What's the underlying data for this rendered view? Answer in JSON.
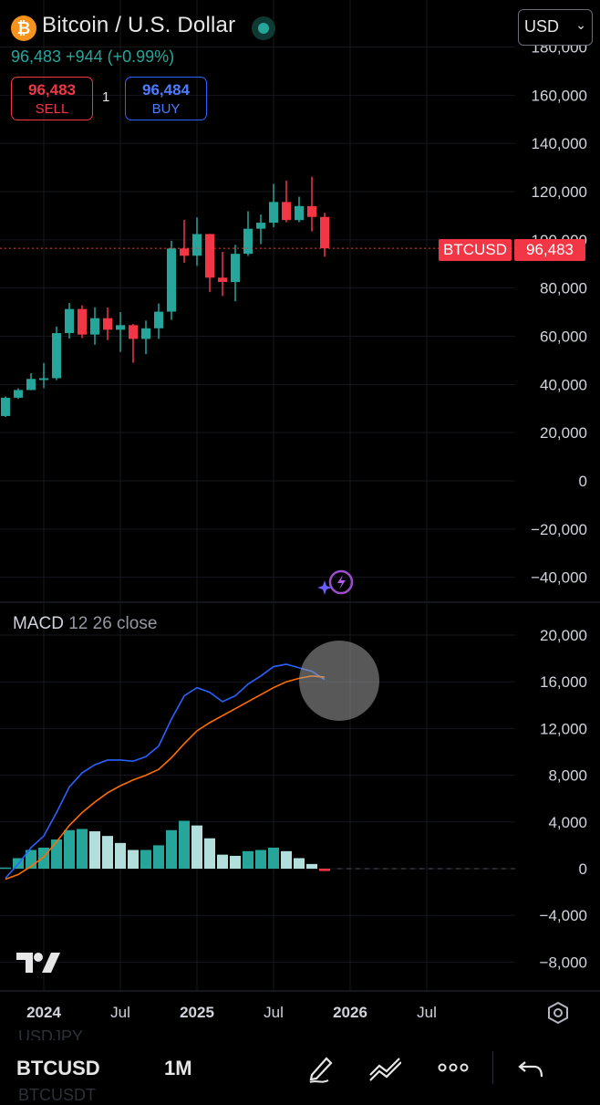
{
  "header": {
    "logo_glyph": "₿",
    "title": "Bitcoin / U.S. Dollar",
    "price": "96,483",
    "change": "+944",
    "change_pct": "(+0.99%)",
    "sell_price": "96,483",
    "sell_label": "SELL",
    "quantity": "1",
    "buy_price": "96,484",
    "buy_label": "BUY",
    "currency": "USD"
  },
  "price_tags": {
    "symbol": "BTCUSD",
    "price": "96,483"
  },
  "colors": {
    "up": "#26a69a",
    "down": "#f23645",
    "macd_line": "#2962ff",
    "signal_line": "#ff6d00",
    "hist_up_strong": "#26a69a",
    "hist_up_weak": "#b2dfdb"
  },
  "price_axis": [
    "180,000",
    "160,000",
    "140,000",
    "120,000",
    "100,000",
    "80,000",
    "60,000",
    "40,000",
    "20,000",
    "0",
    "−20,000",
    "−40,000"
  ],
  "macd": {
    "name": "MACD",
    "params": "12 26 close",
    "axis": [
      "20,000",
      "16,000",
      "12,000",
      "8,000",
      "4,000",
      "0",
      "−4,000",
      "−8,000"
    ]
  },
  "time_axis": [
    "2024",
    "Jul",
    "2025",
    "Jul",
    "2026",
    "Jul"
  ],
  "toolbar": {
    "symbol": "BTCUSD",
    "interval": "1M",
    "ghost_above": "USDJPY",
    "ghost_below": "BTCUSDT"
  },
  "chart_data": [
    {
      "type": "candlestick",
      "title": "Bitcoin / U.S. Dollar",
      "interval": "1M",
      "ylim": [
        -40000,
        180000
      ],
      "candles": [
        {
          "date": "2023-10",
          "open": 26900,
          "high": 35000,
          "low": 26500,
          "close": 34500
        },
        {
          "date": "2023-11",
          "open": 34500,
          "high": 38400,
          "low": 34000,
          "close": 37700
        },
        {
          "date": "2023-12",
          "open": 37700,
          "high": 44700,
          "low": 37600,
          "close": 42300
        },
        {
          "date": "2024-01",
          "open": 42300,
          "high": 48900,
          "low": 38500,
          "close": 42600
        },
        {
          "date": "2024-02",
          "open": 42600,
          "high": 64000,
          "low": 41800,
          "close": 61300
        },
        {
          "date": "2024-03",
          "open": 61300,
          "high": 73800,
          "low": 59000,
          "close": 71300
        },
        {
          "date": "2024-04",
          "open": 71300,
          "high": 72800,
          "low": 59200,
          "close": 60700
        },
        {
          "date": "2024-05",
          "open": 60700,
          "high": 72000,
          "low": 56500,
          "close": 67500
        },
        {
          "date": "2024-06",
          "open": 67500,
          "high": 71900,
          "low": 58400,
          "close": 62700
        },
        {
          "date": "2024-07",
          "open": 62700,
          "high": 70000,
          "low": 53500,
          "close": 64600
        },
        {
          "date": "2024-08",
          "open": 64600,
          "high": 65100,
          "low": 49000,
          "close": 58900
        },
        {
          "date": "2024-09",
          "open": 58900,
          "high": 66500,
          "low": 52600,
          "close": 63300
        },
        {
          "date": "2024-10",
          "open": 63300,
          "high": 73600,
          "low": 58900,
          "close": 70200
        },
        {
          "date": "2024-11",
          "open": 70200,
          "high": 99600,
          "low": 66800,
          "close": 96400
        },
        {
          "date": "2024-12",
          "open": 96400,
          "high": 108300,
          "low": 90500,
          "close": 93400
        },
        {
          "date": "2025-01",
          "open": 93400,
          "high": 109300,
          "low": 89200,
          "close": 102400
        },
        {
          "date": "2025-02",
          "open": 102400,
          "high": 102500,
          "low": 78300,
          "close": 84300
        },
        {
          "date": "2025-03",
          "open": 84300,
          "high": 95000,
          "low": 76700,
          "close": 82500
        },
        {
          "date": "2025-04",
          "open": 82500,
          "high": 97900,
          "low": 74500,
          "close": 94200
        },
        {
          "date": "2025-05",
          "open": 94200,
          "high": 111900,
          "low": 93300,
          "close": 104600
        },
        {
          "date": "2025-06",
          "open": 104600,
          "high": 110500,
          "low": 98200,
          "close": 107100
        },
        {
          "date": "2025-07",
          "open": 107100,
          "high": 123200,
          "low": 105200,
          "close": 115700
        },
        {
          "date": "2025-08",
          "open": 115700,
          "high": 124500,
          "low": 107300,
          "close": 108200
        },
        {
          "date": "2025-09",
          "open": 108200,
          "high": 117900,
          "low": 107300,
          "close": 114000
        },
        {
          "date": "2025-10",
          "open": 114000,
          "high": 126200,
          "low": 103500,
          "close": 109500
        },
        {
          "date": "2025-11",
          "open": 109500,
          "high": 111200,
          "low": 93000,
          "close": 96483
        }
      ],
      "last_price": 96483
    },
    {
      "type": "line",
      "title": "MACD",
      "params": "12 26 close",
      "ylim": [
        -10000,
        21000
      ],
      "x": [
        "2023-10",
        "2023-11",
        "2023-12",
        "2024-01",
        "2024-02",
        "2024-03",
        "2024-04",
        "2024-05",
        "2024-06",
        "2024-07",
        "2024-08",
        "2024-09",
        "2024-10",
        "2024-11",
        "2024-12",
        "2025-01",
        "2025-02",
        "2025-03",
        "2025-04",
        "2025-05",
        "2025-06",
        "2025-07",
        "2025-08",
        "2025-09",
        "2025-10",
        "2025-11"
      ],
      "series": [
        {
          "values": [
            -800,
            400,
            1800,
            2800,
            4800,
            7000,
            8200,
            8900,
            9300,
            9300,
            9200,
            9600,
            10500,
            12800,
            14800,
            15500,
            15100,
            14300,
            14800,
            15800,
            16500,
            17300,
            17500,
            17200,
            16900,
            16200
          ]
        },
        {
          "values": [
            -900,
            -500,
            200,
            1000,
            2300,
            3700,
            4800,
            5700,
            6500,
            7100,
            7600,
            8000,
            8500,
            9500,
            10700,
            11800,
            12500,
            13100,
            13700,
            14300,
            14900,
            15500,
            16000,
            16300,
            16500,
            16400
          ]
        }
      ],
      "histogram": [
        100,
        900,
        1600,
        1800,
        2500,
        3300,
        3400,
        3200,
        2800,
        2200,
        1600,
        1600,
        2000,
        3300,
        4100,
        3700,
        2600,
        1200,
        1100,
        1500,
        1600,
        1800,
        1500,
        900,
        400,
        -200
      ]
    }
  ]
}
